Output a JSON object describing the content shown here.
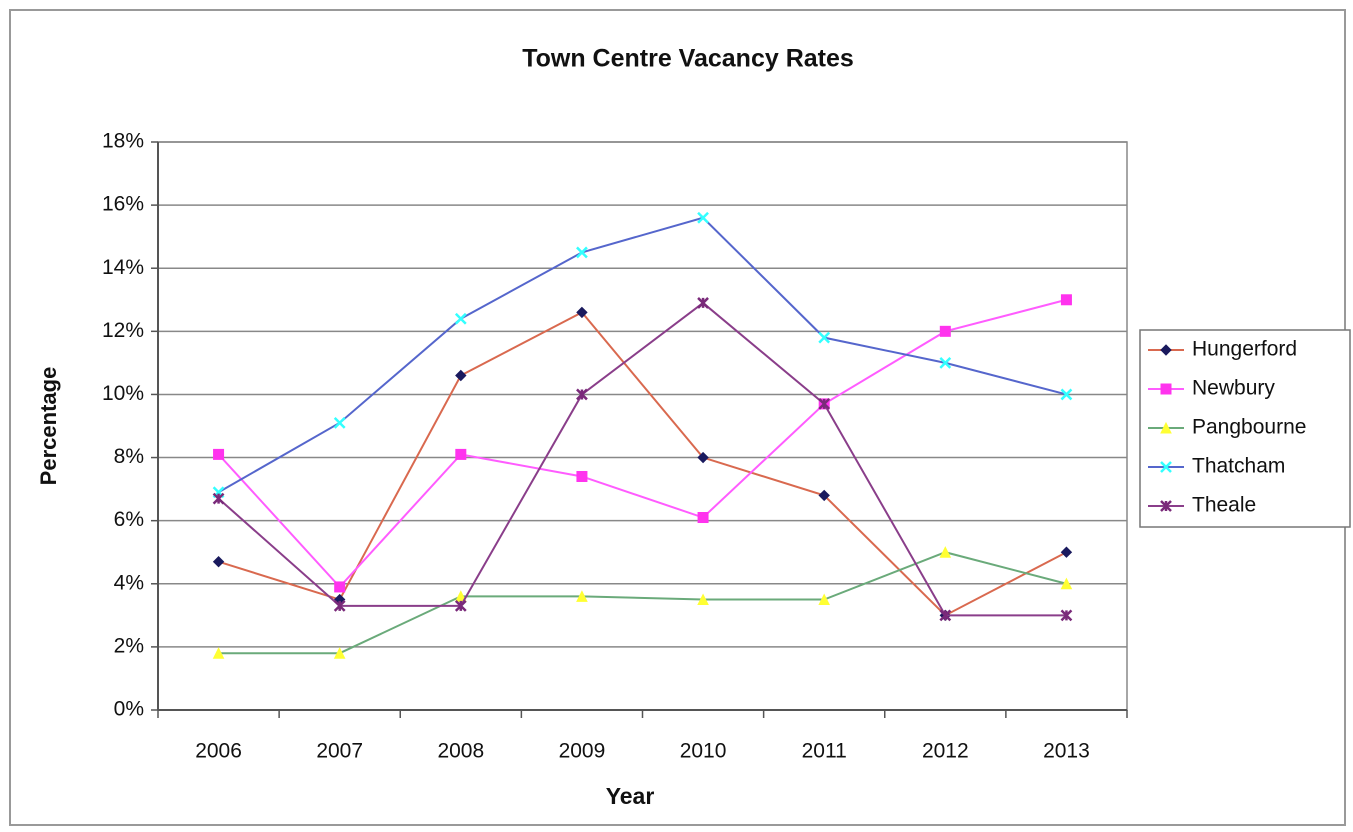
{
  "chart_data": {
    "type": "line",
    "title": "Town Centre Vacancy Rates",
    "x_label": "Year",
    "y_label": "Percentage",
    "categories": [
      "2006",
      "2007",
      "2008",
      "2009",
      "2010",
      "2011",
      "2012",
      "2013"
    ],
    "series": [
      {
        "name": "Hungerford",
        "color": "#d9694f",
        "marker_color": "#1a1a5e",
        "marker": "diamond",
        "values": [
          4.7,
          3.5,
          10.6,
          12.6,
          8.0,
          6.8,
          3.0,
          5.0
        ]
      },
      {
        "name": "Newbury",
        "color": "#ff5cff",
        "marker_color": "#ff33ee",
        "marker": "square",
        "values": [
          8.1,
          3.9,
          8.1,
          7.4,
          6.1,
          9.7,
          12.0,
          13.0
        ]
      },
      {
        "name": "Pangbourne",
        "color": "#6aaa7a",
        "marker_color": "#ffff33",
        "marker": "triangle",
        "values": [
          1.8,
          1.8,
          3.6,
          3.6,
          3.5,
          3.5,
          5.0,
          4.0
        ]
      },
      {
        "name": "Thatcham",
        "color": "#5566cc",
        "marker_color": "#33ffff",
        "marker": "x",
        "values": [
          6.9,
          9.1,
          12.4,
          14.5,
          15.6,
          11.8,
          11.0,
          10.0
        ]
      },
      {
        "name": "Theale",
        "color": "#8a3e8a",
        "marker_color": "#7a2a7a",
        "marker": "star",
        "values": [
          6.7,
          3.3,
          3.3,
          10.0,
          12.9,
          9.7,
          3.0,
          3.0
        ]
      }
    ],
    "ylim": [
      0,
      18
    ],
    "yticks": [
      {
        "value": 0,
        "label": "0%"
      },
      {
        "value": 2,
        "label": "2%"
      },
      {
        "value": 4,
        "label": "4%"
      },
      {
        "value": 6,
        "label": "6%"
      },
      {
        "value": 8,
        "label": "8%"
      },
      {
        "value": 10,
        "label": "10%"
      },
      {
        "value": 12,
        "label": "12%"
      },
      {
        "value": 14,
        "label": "14%"
      },
      {
        "value": 16,
        "label": "16%"
      },
      {
        "value": 18,
        "label": "18%"
      }
    ],
    "grid": true,
    "legend": "right"
  }
}
